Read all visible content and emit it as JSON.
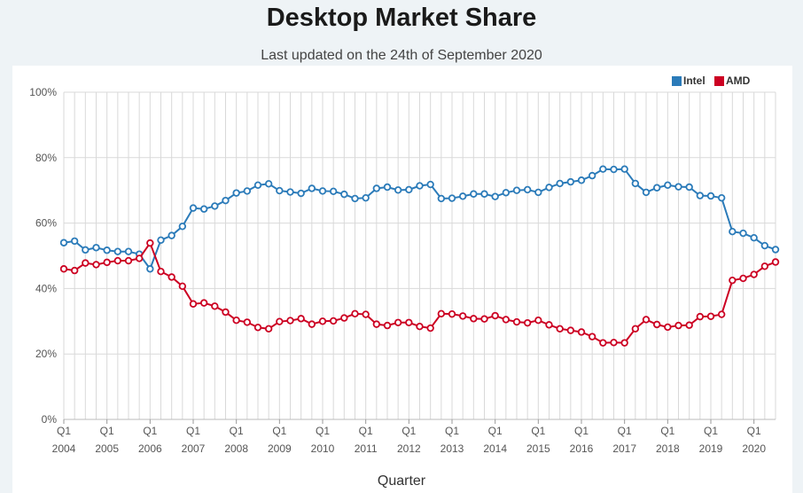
{
  "title": "Desktop Market Share",
  "subtitle": "Last updated on the 24th of September 2020",
  "chart_data": {
    "type": "line",
    "title": "Desktop Market Share",
    "subtitle": "Last updated on the 24th of September 2020",
    "xlabel": "Quarter",
    "ylabel": "",
    "ylim": [
      0,
      100
    ],
    "yticks": [
      "0%",
      "20%",
      "40%",
      "60%",
      "80%",
      "100%"
    ],
    "grid": true,
    "legend_position": "top-right",
    "x_tick_quarter_label": "Q1",
    "x_tick_years": [
      "2004",
      "2005",
      "2006",
      "2007",
      "2008",
      "2009",
      "2010",
      "2011",
      "2012",
      "2013",
      "2014",
      "2015",
      "2016",
      "2017",
      "2018",
      "2019",
      "2020"
    ],
    "x": [
      "2004 Q1",
      "2004 Q2",
      "2004 Q3",
      "2004 Q4",
      "2005 Q1",
      "2005 Q2",
      "2005 Q3",
      "2005 Q4",
      "2006 Q1",
      "2006 Q2",
      "2006 Q3",
      "2006 Q4",
      "2007 Q1",
      "2007 Q2",
      "2007 Q3",
      "2007 Q4",
      "2008 Q1",
      "2008 Q2",
      "2008 Q3",
      "2008 Q4",
      "2009 Q1",
      "2009 Q2",
      "2009 Q3",
      "2009 Q4",
      "2010 Q1",
      "2010 Q2",
      "2010 Q3",
      "2010 Q4",
      "2011 Q1",
      "2011 Q2",
      "2011 Q3",
      "2011 Q4",
      "2012 Q1",
      "2012 Q2",
      "2012 Q3",
      "2012 Q4",
      "2013 Q1",
      "2013 Q2",
      "2013 Q3",
      "2013 Q4",
      "2014 Q1",
      "2014 Q2",
      "2014 Q3",
      "2014 Q4",
      "2015 Q1",
      "2015 Q2",
      "2015 Q3",
      "2015 Q4",
      "2016 Q1",
      "2016 Q2",
      "2016 Q3",
      "2016 Q4",
      "2017 Q1",
      "2017 Q2",
      "2017 Q3",
      "2017 Q4",
      "2018 Q1",
      "2018 Q2",
      "2018 Q3",
      "2018 Q4",
      "2019 Q1",
      "2019 Q2",
      "2019 Q3",
      "2019 Q4",
      "2020 Q1",
      "2020 Q2",
      "2020 Q3"
    ],
    "series": [
      {
        "name": "Intel",
        "color": "#2b7bb9",
        "values": [
          54,
          54.5,
          51.8,
          52.5,
          51.7,
          51.3,
          51.3,
          50.5,
          46,
          54.8,
          56.2,
          59,
          64.6,
          64.3,
          65.2,
          66.9,
          69.2,
          69.8,
          71.6,
          72,
          69.9,
          69.5,
          69.1,
          70.6,
          69.8,
          69.7,
          68.8,
          67.5,
          67.7,
          70.6,
          71,
          70.1,
          70.2,
          71.4,
          71.8,
          67.5,
          67.6,
          68.2,
          68.9,
          68.9,
          68.1,
          69.3,
          70,
          70.2,
          69.4,
          70.9,
          72.1,
          72.6,
          73.1,
          74.5,
          76.5,
          76.4,
          76.5,
          72.1,
          69.4,
          70.8,
          71.6,
          71.1,
          71,
          68.4,
          68.3,
          67.7,
          57.4,
          56.9,
          55.5,
          53.1,
          51.9
        ]
      },
      {
        "name": "AMD",
        "color": "#cc0022",
        "values": [
          46,
          45.5,
          47.8,
          47.3,
          48,
          48.5,
          48.5,
          49.2,
          53.9,
          45.2,
          43.5,
          40.7,
          35.3,
          35.6,
          34.6,
          32.8,
          30.3,
          29.7,
          28.1,
          27.7,
          29.9,
          30.2,
          30.8,
          29.1,
          30,
          30.1,
          31,
          32.3,
          32.1,
          29.1,
          28.7,
          29.6,
          29.6,
          28.4,
          27.9,
          32.3,
          32.2,
          31.6,
          30.8,
          30.7,
          31.7,
          30.5,
          29.8,
          29.5,
          30.3,
          28.9,
          27.7,
          27.2,
          26.7,
          25.3,
          23.4,
          23.5,
          23.4,
          27.7,
          30.5,
          29,
          28.2,
          28.7,
          28.8,
          31.4,
          31.5,
          32.1,
          42.5,
          43.1,
          44.3,
          46.8,
          48.1
        ]
      }
    ]
  }
}
